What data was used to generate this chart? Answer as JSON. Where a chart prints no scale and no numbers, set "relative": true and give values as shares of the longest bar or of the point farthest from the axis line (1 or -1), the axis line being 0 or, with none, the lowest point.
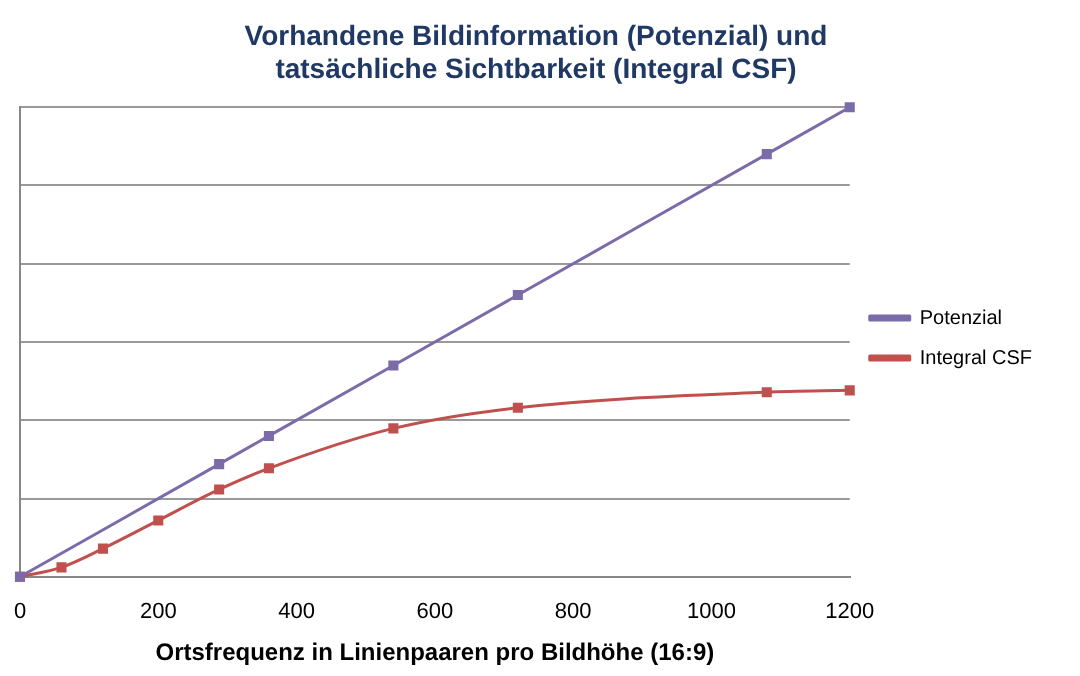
{
  "chart_data": {
    "type": "line",
    "title": "Vorhandene Bildinformation (Potenzial) und tatsächliche Sichtbarkeit (Integral CSF)",
    "xlabel": "Ortsfrequenz in Linienpaaren pro Bildhöhe (16:9)",
    "relative": true,
    "xlim": [
      0,
      1200
    ],
    "xticks": [
      0,
      200,
      400,
      600,
      800,
      1000,
      1200
    ],
    "grid": "y",
    "legend": "right",
    "marker": "square",
    "line_style": "solid",
    "series": [
      {
        "name": "Potenzial",
        "color": "#7b6ba8",
        "x": [
          0,
          288,
          360,
          540,
          720,
          1080,
          1200
        ],
        "values": [
          0,
          0.24,
          0.3,
          0.45,
          0.6,
          0.9,
          1
        ]
      },
      {
        "name": "Integral CSF",
        "color": "#c0504d",
        "x": [
          0,
          60,
          120,
          200,
          288,
          360,
          540,
          720,
          1080,
          1200
        ],
        "values": [
          0,
          0.02,
          0.06,
          0.12,
          0.186,
          0.231,
          0.316,
          0.36,
          0.393,
          0.397
        ]
      }
    ]
  }
}
